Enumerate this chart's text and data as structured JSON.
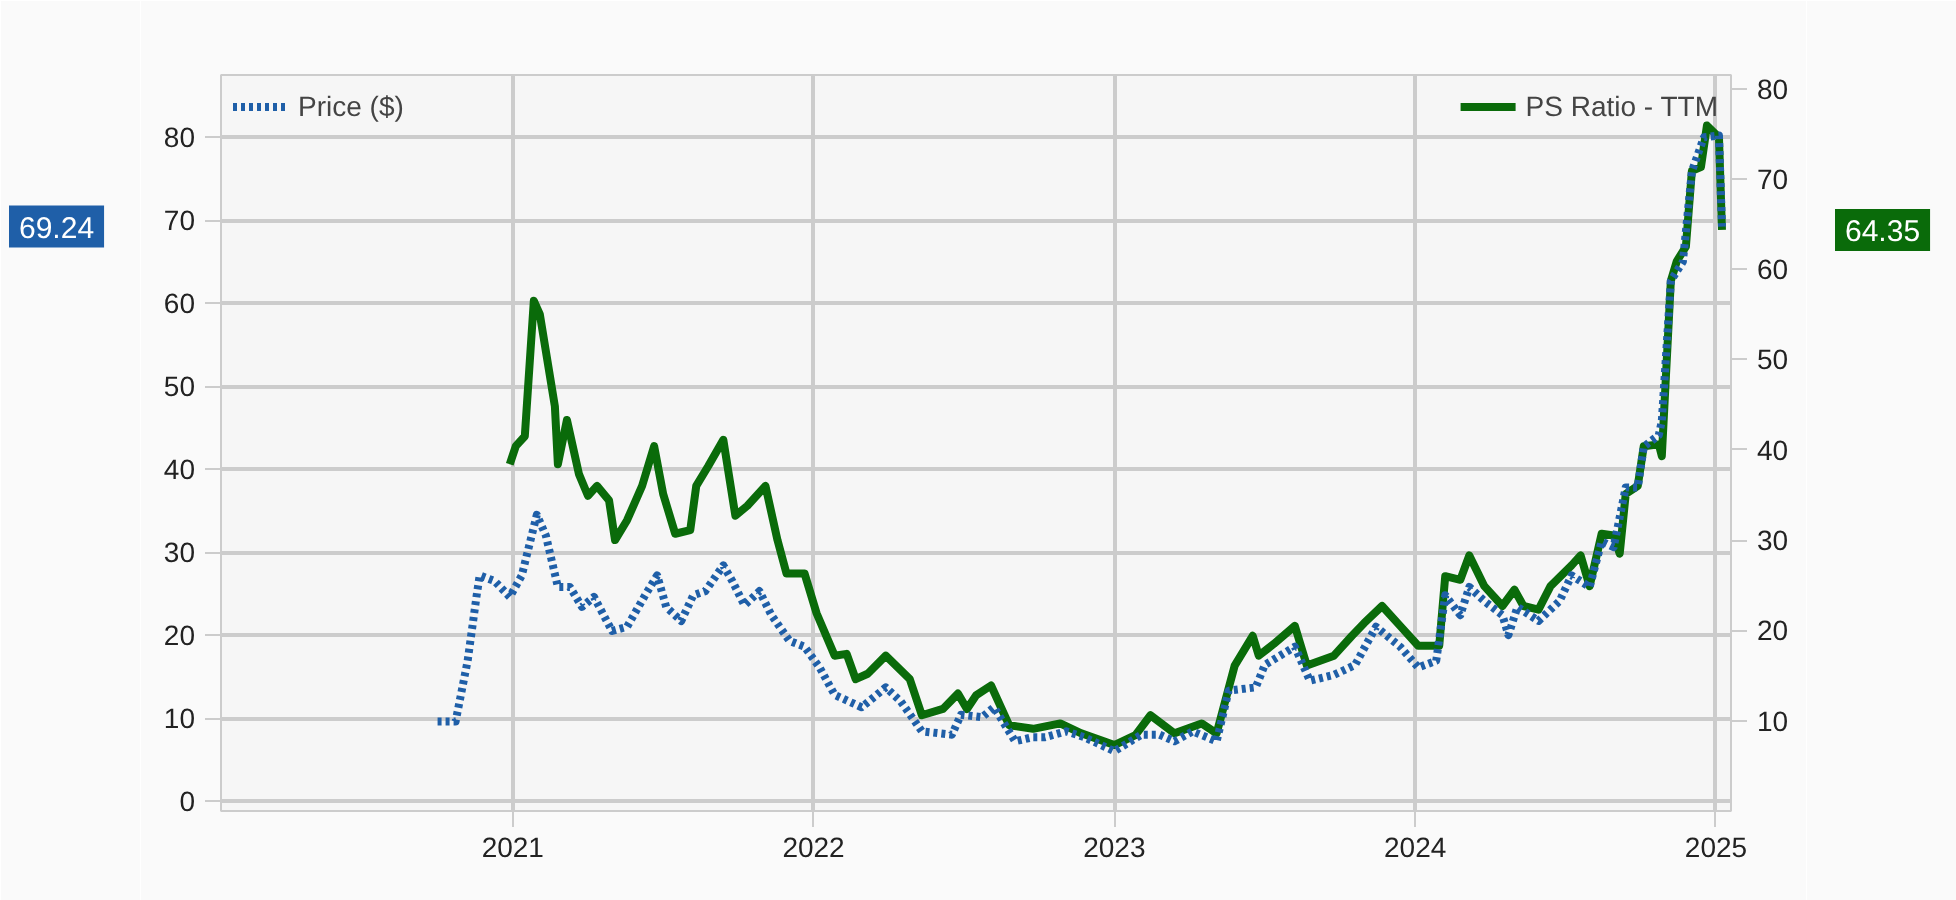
{
  "chart_data": {
    "type": "line",
    "xlim": [
      2020.03,
      2025.05
    ],
    "xticks": [
      2021,
      2022,
      2023,
      2024,
      2025
    ],
    "ylim": [
      -1.2,
      87.5
    ],
    "yticks": [
      0,
      10,
      20,
      30,
      40,
      50,
      60,
      70,
      80
    ],
    "y2lim": [
      0,
      81.5
    ],
    "y2ticks": [
      10,
      20,
      30,
      40,
      50,
      60,
      70,
      80
    ],
    "grid": true,
    "legend": "top",
    "marker": "none",
    "annotations": [
      "69.24",
      "64.35"
    ],
    "series": [
      {
        "name": "Price ($)",
        "color": "#1f5fa8",
        "line_style": "dotted",
        "x": [
          2020.75,
          2020.81,
          2020.85,
          2020.88,
          2020.89,
          2020.94,
          2020.99,
          2021.03,
          2021.08,
          2021.11,
          2021.15,
          2021.19,
          2021.23,
          2021.27,
          2021.33,
          2021.38,
          2021.44,
          2021.48,
          2021.51,
          2021.56,
          2021.6,
          2021.64,
          2021.7,
          2021.73,
          2021.77,
          2021.82,
          2021.86,
          2021.92,
          2021.97,
          2022.02,
          2022.07,
          2022.16,
          2022.24,
          2022.29,
          2022.36,
          2022.46,
          2022.49,
          2022.56,
          2022.6,
          2022.67,
          2022.73,
          2022.77,
          2022.84,
          2022.9,
          2023.0,
          2023.09,
          2023.15,
          2023.2,
          2023.26,
          2023.34,
          2023.38,
          2023.47,
          2023.5,
          2023.6,
          2023.65,
          2023.73,
          2023.8,
          2023.87,
          2023.95,
          2024.01,
          2024.07,
          2024.1,
          2024.15,
          2024.18,
          2024.23,
          2024.29,
          2024.31,
          2024.34,
          2024.41,
          2024.48,
          2024.52,
          2024.58,
          2024.62,
          2024.66,
          2024.7,
          2024.74,
          2024.76,
          2024.81,
          2024.82,
          2024.85,
          2024.89,
          2024.92,
          2024.96,
          2025.01,
          2025.02
        ],
        "values": [
          9.6,
          9.6,
          16.9,
          24.8,
          27.2,
          26.5,
          24.6,
          27.2,
          34.5,
          32,
          25.8,
          25.8,
          23.4,
          24.6,
          20.5,
          21,
          24.8,
          27.2,
          23.4,
          21.7,
          24.8,
          25.3,
          28.4,
          26.5,
          23.6,
          25.3,
          22.4,
          19.3,
          18.6,
          16.1,
          12.8,
          11.3,
          13.7,
          12,
          8.4,
          8,
          10.4,
          10.1,
          11.3,
          7.2,
          7.7,
          7.7,
          8.4,
          7.7,
          6,
          8,
          8,
          7.2,
          8.4,
          7.2,
          13.3,
          13.7,
          16.4,
          18.6,
          14.5,
          15.2,
          16.4,
          21,
          18.6,
          16.1,
          16.9,
          24.8,
          22.4,
          25.8,
          24.1,
          22.4,
          20,
          23.4,
          21.7,
          24.1,
          27.2,
          25.8,
          31.3,
          30.6,
          37.8,
          37.8,
          42.7,
          44.1,
          45.8,
          62.7,
          65,
          75.9,
          80,
          80.2,
          69.24
        ]
      },
      {
        "name": "PS Ratio - TTM",
        "color": "#0a6b0a",
        "line_style": "solid",
        "axis": "y2",
        "x": [
          2020.99,
          2021.01,
          2021.04,
          2021.07,
          2021.09,
          2021.14,
          2021.15,
          2021.18,
          2021.22,
          2021.25,
          2021.28,
          2021.32,
          2021.34,
          2021.38,
          2021.43,
          2021.47,
          2021.5,
          2021.54,
          2021.59,
          2021.61,
          2021.65,
          2021.7,
          2021.74,
          2021.78,
          2021.84,
          2021.88,
          2021.91,
          2021.97,
          2022.01,
          2022.07,
          2022.11,
          2022.14,
          2022.18,
          2022.24,
          2022.32,
          2022.36,
          2022.43,
          2022.48,
          2022.51,
          2022.54,
          2022.59,
          2022.65,
          2022.73,
          2022.82,
          2022.89,
          2023.0,
          2023.07,
          2023.12,
          2023.2,
          2023.29,
          2023.34,
          2023.4,
          2023.46,
          2023.48,
          2023.53,
          2023.6,
          2023.64,
          2023.73,
          2023.79,
          2023.83,
          2023.89,
          2023.95,
          2024.01,
          2024.08,
          2024.1,
          2024.15,
          2024.18,
          2024.23,
          2024.29,
          2024.33,
          2024.36,
          2024.41,
          2024.45,
          2024.52,
          2024.55,
          2024.58,
          2024.62,
          2024.66,
          2024.68,
          2024.7,
          2024.74,
          2024.76,
          2024.81,
          2024.82,
          2024.85,
          2024.87,
          2024.9,
          2024.92,
          2024.95,
          2024.97,
          2025.01,
          2025.02
        ],
        "values": [
          38.4,
          40.4,
          41.5,
          56.5,
          55,
          44.8,
          38.4,
          43.3,
          37.3,
          34.9,
          36,
          34.4,
          30,
          32.2,
          36,
          40.4,
          35.1,
          30.7,
          31.1,
          36,
          38.2,
          41.1,
          32.7,
          33.8,
          36,
          30,
          26.3,
          26.3,
          21.9,
          17.2,
          17.4,
          14.6,
          15.2,
          17.2,
          14.6,
          10.6,
          11.3,
          13,
          11.3,
          12.8,
          13.9,
          9.5,
          9.1,
          9.7,
          8.6,
          7.3,
          8.4,
          10.6,
          8.6,
          9.7,
          8.6,
          16.1,
          19.4,
          17.2,
          18.5,
          20.5,
          16.1,
          17.2,
          19.4,
          20.8,
          22.7,
          20.5,
          18.3,
          18.3,
          26,
          25.6,
          28.3,
          24.9,
          22.7,
          24.5,
          22.7,
          22.3,
          24.9,
          27.2,
          28.3,
          24.9,
          30.7,
          30.5,
          28.5,
          35.1,
          36,
          40.4,
          40.6,
          39.3,
          58.7,
          60.9,
          62.5,
          70.9,
          71.3,
          75.9,
          74.6,
          64.35
        ]
      }
    ]
  }
}
